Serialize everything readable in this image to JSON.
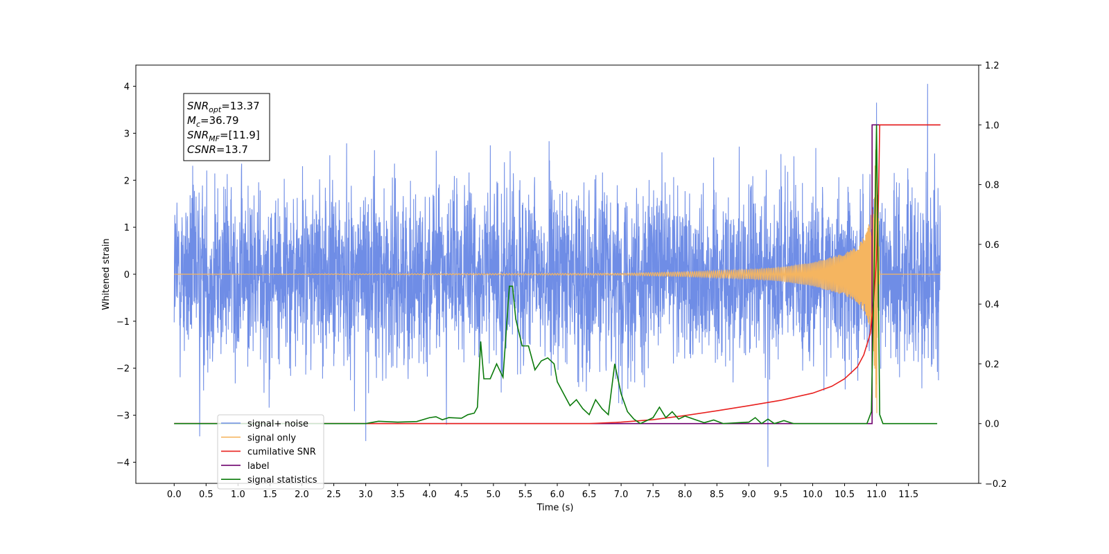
{
  "chart_data": {
    "type": "line",
    "xlabel": "Time (s)",
    "ylabel": "Whitened strain",
    "xlim": [
      -0.6,
      12.6
    ],
    "ylim_left": [
      -4.45,
      4.45
    ],
    "ylim_right": [
      -0.2,
      1.2
    ],
    "x_ticks": [
      0.0,
      0.5,
      1.0,
      1.5,
      2.0,
      2.5,
      3.0,
      3.5,
      4.0,
      4.5,
      5.0,
      5.5,
      6.0,
      6.5,
      7.0,
      7.5,
      8.0,
      8.5,
      9.0,
      9.5,
      10.0,
      10.5,
      11.0,
      11.5
    ],
    "x_tick_labels": [
      "0.0",
      "0.5",
      "1.0",
      "1.5",
      "2.0",
      "2.5",
      "3.0",
      "3.5",
      "4.0",
      "4.5",
      "5.0",
      "5.5",
      "6.0",
      "6.5",
      "7.0",
      "7.5",
      "8.0",
      "8.5",
      "9.0",
      "9.5",
      "10.0",
      "10.5",
      "11.0",
      "11.5"
    ],
    "y_ticks_left": [
      4,
      3,
      2,
      1,
      0,
      -1,
      -2,
      -3,
      -4
    ],
    "y_tick_labels_left": [
      "4",
      "3",
      "2",
      "1",
      "0",
      "−1",
      "−2",
      "−3",
      "−4"
    ],
    "y_ticks_right": [
      1.2,
      1.0,
      0.8,
      0.6,
      0.4,
      0.2,
      0.0,
      -0.2
    ],
    "y_tick_labels_right": [
      "1.2",
      "1.0",
      "0.8",
      "0.6",
      "0.4",
      "0.2",
      "0.0",
      "−0.2"
    ],
    "annotation": [
      {
        "base": "SNR",
        "sub": "opt",
        "rest": "=13.37"
      },
      {
        "base": "M",
        "sub": "c",
        "rest": "=36.79"
      },
      {
        "base": "SNR",
        "sub": "MF",
        "rest": "=[11.9]"
      },
      {
        "base": "CSNR",
        "sub": "",
        "rest": "=13.7"
      }
    ],
    "legend_position": "lower-left",
    "series": [
      {
        "name": "signal+ noise",
        "color": "#6f8de6",
        "axis": "left",
        "description_values": "Gaussian-like whitened noise, roughly within [-2.5, 2.5] with spikes up to 4.05 and down to -4.1, from t=0 to t=12",
        "x_range": [
          0.0,
          12.0
        ],
        "spikes": [
          [
            11.8,
            4.05
          ],
          [
            9.3,
            -4.1
          ],
          [
            11.0,
            -3.85
          ],
          [
            11.0,
            3.65
          ],
          [
            0.4,
            -3.45
          ],
          [
            3.0,
            -3.55
          ]
        ]
      },
      {
        "name": "signal only",
        "color": "#f5b560",
        "axis": "left",
        "envelope": [
          [
            0.0,
            0.0
          ],
          [
            7.0,
            0.02
          ],
          [
            8.0,
            0.05
          ],
          [
            9.0,
            0.1
          ],
          [
            9.5,
            0.15
          ],
          [
            10.0,
            0.25
          ],
          [
            10.5,
            0.45
          ],
          [
            10.7,
            0.6
          ],
          [
            10.85,
            0.9
          ],
          [
            10.95,
            1.5
          ],
          [
            11.0,
            3.3
          ],
          [
            11.03,
            1.5
          ],
          [
            11.05,
            0.0
          ],
          [
            12.0,
            0.0
          ]
        ]
      },
      {
        "name": "cumilative SNR",
        "color": "#e8201e",
        "axis": "right",
        "points": [
          [
            0.0,
            0.0
          ],
          [
            6.5,
            0.0
          ],
          [
            7.0,
            0.005
          ],
          [
            7.5,
            0.013
          ],
          [
            8.0,
            0.027
          ],
          [
            8.5,
            0.043
          ],
          [
            9.0,
            0.06
          ],
          [
            9.5,
            0.078
          ],
          [
            10.0,
            0.102
          ],
          [
            10.3,
            0.125
          ],
          [
            10.5,
            0.15
          ],
          [
            10.7,
            0.19
          ],
          [
            10.8,
            0.23
          ],
          [
            10.9,
            0.3
          ],
          [
            10.95,
            0.4
          ],
          [
            11.0,
            0.55
          ],
          [
            11.03,
            0.75
          ],
          [
            11.05,
            1.0
          ],
          [
            12.0,
            1.0
          ]
        ]
      },
      {
        "name": "label",
        "color": "#6d006d",
        "axis": "right",
        "points": [
          [
            0.0,
            0.0
          ],
          [
            10.93,
            0.0
          ],
          [
            10.93,
            1.0
          ],
          [
            12.0,
            1.0
          ]
        ]
      },
      {
        "name": "signal statistics",
        "color": "#0a7a0a",
        "axis": "right",
        "points": [
          [
            0.0,
            0.0
          ],
          [
            0.5,
            0.0
          ],
          [
            1.0,
            0.0
          ],
          [
            1.5,
            0.0
          ],
          [
            2.0,
            0.0
          ],
          [
            2.5,
            0.0
          ],
          [
            3.0,
            0.0
          ],
          [
            3.2,
            0.008
          ],
          [
            3.5,
            0.005
          ],
          [
            3.8,
            0.007
          ],
          [
            4.0,
            0.02
          ],
          [
            4.1,
            0.023
          ],
          [
            4.2,
            0.013
          ],
          [
            4.3,
            0.02
          ],
          [
            4.5,
            0.018
          ],
          [
            4.6,
            0.03
          ],
          [
            4.7,
            0.035
          ],
          [
            4.75,
            0.055
          ],
          [
            4.8,
            0.275
          ],
          [
            4.85,
            0.15
          ],
          [
            4.95,
            0.15
          ],
          [
            5.05,
            0.2
          ],
          [
            5.15,
            0.155
          ],
          [
            5.25,
            0.46
          ],
          [
            5.3,
            0.46
          ],
          [
            5.35,
            0.35
          ],
          [
            5.45,
            0.26
          ],
          [
            5.55,
            0.26
          ],
          [
            5.65,
            0.18
          ],
          [
            5.75,
            0.21
          ],
          [
            5.85,
            0.22
          ],
          [
            5.95,
            0.2
          ],
          [
            6.0,
            0.14
          ],
          [
            6.1,
            0.1
          ],
          [
            6.2,
            0.06
          ],
          [
            6.3,
            0.08
          ],
          [
            6.4,
            0.05
          ],
          [
            6.5,
            0.03
          ],
          [
            6.6,
            0.08
          ],
          [
            6.7,
            0.05
          ],
          [
            6.8,
            0.03
          ],
          [
            6.9,
            0.2
          ],
          [
            7.0,
            0.1
          ],
          [
            7.1,
            0.04
          ],
          [
            7.2,
            0.015
          ],
          [
            7.3,
            0.0
          ],
          [
            7.5,
            0.02
          ],
          [
            7.6,
            0.055
          ],
          [
            7.7,
            0.02
          ],
          [
            7.8,
            0.04
          ],
          [
            7.9,
            0.015
          ],
          [
            8.0,
            0.025
          ],
          [
            8.3,
            0.003
          ],
          [
            8.45,
            0.012
          ],
          [
            8.6,
            0.0
          ],
          [
            9.0,
            0.005
          ],
          [
            9.1,
            0.02
          ],
          [
            9.2,
            0.0
          ],
          [
            9.3,
            0.015
          ],
          [
            9.4,
            0.0
          ],
          [
            9.55,
            0.01
          ],
          [
            9.7,
            0.0
          ],
          [
            10.5,
            0.0
          ],
          [
            10.85,
            0.0
          ],
          [
            10.92,
            0.04
          ],
          [
            10.97,
            0.6
          ],
          [
            11.0,
            1.0
          ],
          [
            11.05,
            0.03
          ],
          [
            11.1,
            0.0
          ],
          [
            11.95,
            0.0
          ]
        ]
      }
    ]
  }
}
